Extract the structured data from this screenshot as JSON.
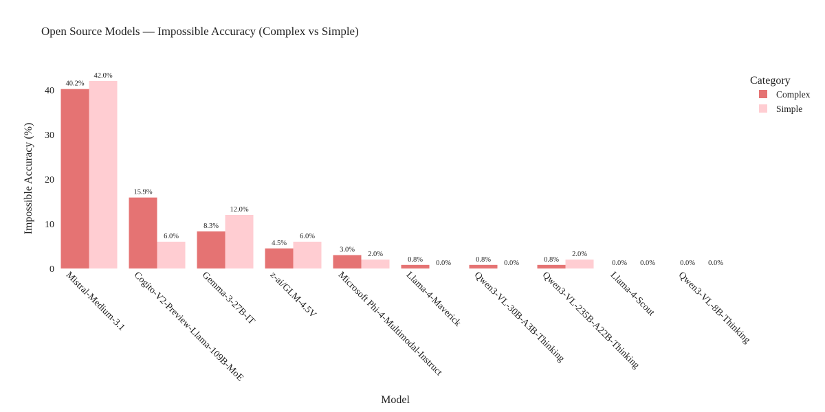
{
  "chart_data": {
    "type": "bar",
    "title": "Open Source Models — Impossible Accuracy (Complex vs Simple)",
    "xlabel": "Model",
    "ylabel": "Impossible Accuracy (%)",
    "ylim": [
      0,
      44
    ],
    "yticks": [
      0,
      10,
      20,
      30,
      40
    ],
    "grid": false,
    "legend": {
      "title": "Category",
      "placement": "top-right"
    },
    "categories": [
      "Mistral-Medium-3.1",
      "Cogito-V2-Preview-Llama-109B-MoE",
      "Gemma-3-27B-IT",
      "z-ai/GLM-4.5V",
      "Microsoft Phi-4-Multimodal-Instruct",
      "Llama-4-Maverick",
      "Qwen3-VL-30B-A3B-Thinking",
      "Qwen3-VL-235B-A22B-Thinking",
      "Llama-4-Scout",
      "Qwen3-VL-8B-Thinking"
    ],
    "series": [
      {
        "name": "Complex",
        "color": "#e57373",
        "values": [
          40.2,
          15.9,
          8.3,
          4.5,
          3.0,
          0.8,
          0.8,
          0.8,
          0.0,
          0.0
        ],
        "labels": [
          "40.2%",
          "15.9%",
          "8.3%",
          "4.5%",
          "3.0%",
          "0.8%",
          "0.8%",
          "0.8%",
          "0.0%",
          "0.0%"
        ]
      },
      {
        "name": "Simple",
        "color": "#ffcdd2",
        "values": [
          42.0,
          6.0,
          12.0,
          6.0,
          2.0,
          0.0,
          0.0,
          2.0,
          0.0,
          0.0
        ],
        "labels": [
          "42.0%",
          "6.0%",
          "12.0%",
          "6.0%",
          "2.0%",
          "0.0%",
          "0.0%",
          "2.0%",
          "0.0%",
          "0.0%"
        ]
      }
    ]
  }
}
